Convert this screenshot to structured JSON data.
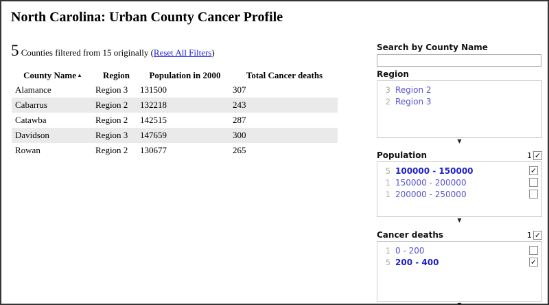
{
  "page": {
    "title": "North Carolina: Urban County Cancer Profile"
  },
  "summary": {
    "count": "5",
    "text_before": " Counties filtered from 15 originally (",
    "reset_link": "Reset All Filters",
    "text_after": ")"
  },
  "table": {
    "columns": [
      {
        "label": "County Name",
        "sorted": "ascending"
      },
      {
        "label": "Region"
      },
      {
        "label": "Population in 2000"
      },
      {
        "label": "Total Cancer deaths"
      }
    ],
    "rows": [
      [
        "Alamance",
        "Region 3",
        "131500",
        "307"
      ],
      [
        "Cabarrus",
        "Region 2",
        "132218",
        "243"
      ],
      [
        "Catawba",
        "Region 2",
        "142515",
        "287"
      ],
      [
        "Davidson",
        "Region 3",
        "147659",
        "300"
      ],
      [
        "Rowan",
        "Region 2",
        "130677",
        "265"
      ]
    ]
  },
  "sidebar": {
    "search": {
      "label": "Search by County Name",
      "value": ""
    },
    "facets": [
      {
        "title": "Region",
        "selected_count": "",
        "header_checkbox": false,
        "items": [
          {
            "count": "3",
            "label": "Region 2",
            "selected": false,
            "has_checkbox": false,
            "checked": false
          },
          {
            "count": "2",
            "label": "Region 3",
            "selected": false,
            "has_checkbox": false,
            "checked": false
          }
        ]
      },
      {
        "title": "Population",
        "selected_count": "1",
        "header_checkbox": true,
        "items": [
          {
            "count": "5",
            "label": "100000 - 150000",
            "selected": true,
            "has_checkbox": true,
            "checked": true
          },
          {
            "count": "1",
            "label": "150000 - 200000",
            "selected": false,
            "has_checkbox": true,
            "checked": false
          },
          {
            "count": "1",
            "label": "200000 - 250000",
            "selected": false,
            "has_checkbox": true,
            "checked": false
          }
        ]
      },
      {
        "title": "Cancer deaths",
        "selected_count": "1",
        "header_checkbox": true,
        "items": [
          {
            "count": "1",
            "label": "0 - 200",
            "selected": false,
            "has_checkbox": true,
            "checked": false
          },
          {
            "count": "5",
            "label": "200 - 400",
            "selected": true,
            "has_checkbox": true,
            "checked": true
          }
        ]
      }
    ]
  },
  "icons": {
    "check": "✓",
    "sort_asc": "▲",
    "facet_grip": "▼"
  },
  "colors": {
    "frame_border": "#353535",
    "link_blue": "#1d1de0",
    "facet_link": "#5353d3",
    "facet_link_selected": "#2121cb",
    "count_gray": "#aaaaaa",
    "row_stripe": "#eaeaea",
    "box_border": "#c9c9c9"
  }
}
